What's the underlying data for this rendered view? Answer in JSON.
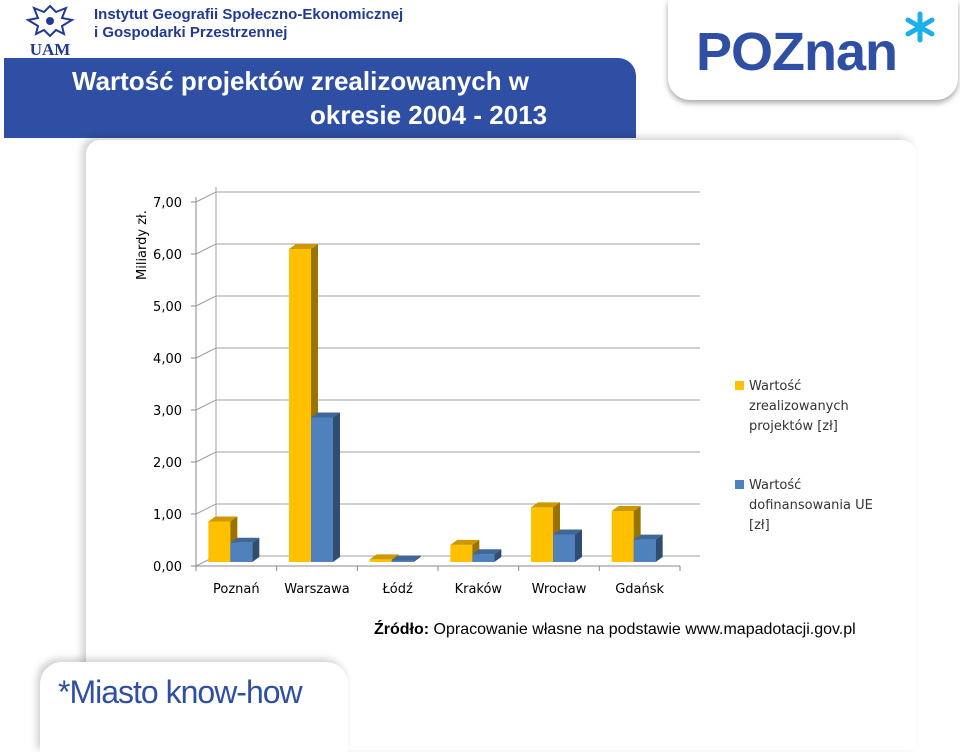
{
  "header": {
    "institute_line1": "Instytut Geografii Społeczno-Ekonomicznej",
    "institute_line2": "i Gospodarki Przestrzennej",
    "title_line1": "Wartość projektów zrealizowanych w",
    "title_line2": "okresie 2004 - 2013",
    "uam_logo_text": "UAM",
    "poznan_logo_text": "POZnan"
  },
  "source": {
    "label": "Źródło:",
    "text": "Opracowanie własne na podstawie www.mapadotacji.gov.pl"
  },
  "footer": {
    "slogan": "*Miasto know-how"
  },
  "colors": {
    "brand_blue": "#2e4fa3",
    "series1": "#ffc000",
    "series2": "#4f81bd"
  },
  "chart_data": {
    "type": "bar",
    "ylabel": "Miliardy zł.",
    "ylim": [
      0,
      7
    ],
    "yticks": [
      "0,00",
      "1,00",
      "2,00",
      "3,00",
      "4,00",
      "5,00",
      "6,00",
      "7,00"
    ],
    "categories": [
      "Poznań",
      "Warszawa",
      "Łódź",
      "Kraków",
      "Wrocław",
      "Gdańsk"
    ],
    "series": [
      {
        "name": "Wartość zrealizowanych projektów [zł]",
        "values": [
          0.78,
          6.02,
          0.05,
          0.33,
          1.05,
          0.98
        ],
        "color": "#ffc000"
      },
      {
        "name": "Wartość dofinansowania UE [zł]",
        "values": [
          0.37,
          2.78,
          0.03,
          0.15,
          0.53,
          0.43
        ],
        "color": "#4f81bd"
      }
    ],
    "legend_lines": [
      [
        "Wartość",
        "zrealizowanych",
        "projektów [zł]"
      ],
      [
        "Wartość",
        "dofinansowania UE",
        "[zł]"
      ]
    ],
    "grid": true,
    "legend_position": "right",
    "style": "3d-columns"
  }
}
